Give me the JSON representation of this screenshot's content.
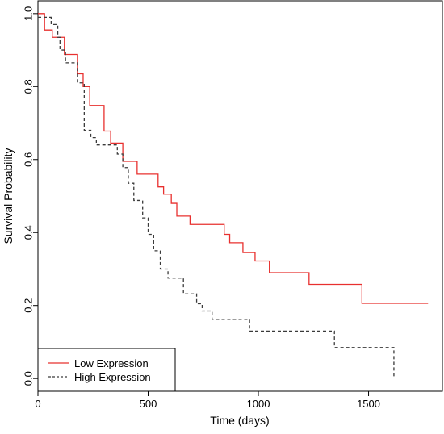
{
  "chart_data": {
    "type": "line",
    "title": "",
    "xlabel": "Time (days)",
    "ylabel": "Survival Probability",
    "xlim": [
      0,
      1835
    ],
    "ylim": [
      -0.035,
      1.035
    ],
    "x_ticks": [
      {
        "value": 0,
        "label": "0"
      },
      {
        "value": 500,
        "label": "500"
      },
      {
        "value": 1000,
        "label": "1000"
      },
      {
        "value": 1500,
        "label": "1500"
      }
    ],
    "y_ticks": [
      {
        "value": 0.0,
        "label": "0.0"
      },
      {
        "value": 0.2,
        "label": "0.2"
      },
      {
        "value": 0.4,
        "label": "0.4"
      },
      {
        "value": 0.6,
        "label": "0.6"
      },
      {
        "value": 0.8,
        "label": "0.8"
      },
      {
        "value": 1.0,
        "label": "1.0"
      }
    ],
    "grid": false,
    "legend_position": "bottom-left",
    "series": [
      {
        "name": "Low Expression",
        "color": "#e8302f",
        "line_style": "solid",
        "step": true,
        "points": [
          [
            0,
            1.0
          ],
          [
            30,
            0.955
          ],
          [
            65,
            0.935
          ],
          [
            120,
            0.888
          ],
          [
            180,
            0.835
          ],
          [
            205,
            0.8
          ],
          [
            235,
            0.748
          ],
          [
            300,
            0.678
          ],
          [
            330,
            0.645
          ],
          [
            385,
            0.595
          ],
          [
            450,
            0.56
          ],
          [
            545,
            0.525
          ],
          [
            570,
            0.505
          ],
          [
            605,
            0.48
          ],
          [
            630,
            0.445
          ],
          [
            690,
            0.422
          ],
          [
            845,
            0.395
          ],
          [
            870,
            0.372
          ],
          [
            930,
            0.345
          ],
          [
            985,
            0.322
          ],
          [
            1050,
            0.29
          ],
          [
            1230,
            0.258
          ],
          [
            1470,
            0.206
          ],
          [
            1770,
            0.206
          ]
        ]
      },
      {
        "name": "High Expression",
        "color": "#3a3a3a",
        "line_style": "dashed",
        "step": true,
        "points": [
          [
            0,
            0.99
          ],
          [
            60,
            0.97
          ],
          [
            90,
            0.935
          ],
          [
            100,
            0.9
          ],
          [
            125,
            0.865
          ],
          [
            180,
            0.81
          ],
          [
            210,
            0.68
          ],
          [
            240,
            0.66
          ],
          [
            265,
            0.64
          ],
          [
            360,
            0.615
          ],
          [
            385,
            0.578
          ],
          [
            410,
            0.535
          ],
          [
            435,
            0.488
          ],
          [
            475,
            0.44
          ],
          [
            500,
            0.395
          ],
          [
            525,
            0.35
          ],
          [
            555,
            0.3
          ],
          [
            590,
            0.275
          ],
          [
            660,
            0.232
          ],
          [
            720,
            0.205
          ],
          [
            745,
            0.185
          ],
          [
            790,
            0.162
          ],
          [
            960,
            0.13
          ],
          [
            1345,
            0.085
          ],
          [
            1615,
            0.085
          ],
          [
            1615,
            0.0
          ]
        ]
      }
    ]
  }
}
